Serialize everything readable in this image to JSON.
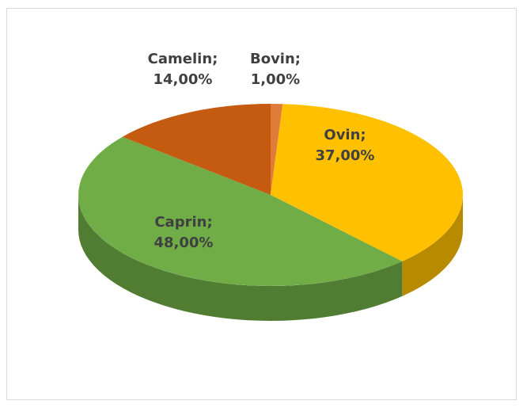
{
  "chart_data": {
    "type": "pie",
    "title": "",
    "slices": [
      {
        "name": "Bovin",
        "value": 1.0,
        "label_value": "1,00%",
        "color": "#e07b39"
      },
      {
        "name": "Ovin",
        "value": 37.0,
        "label_value": "37,00%",
        "color": "#ffc000"
      },
      {
        "name": "Caprin",
        "value": 48.0,
        "label_value": "48,00%",
        "color": "#70ad47"
      },
      {
        "name": "Camelin",
        "value": 14.0,
        "label_value": "14,00%",
        "color": "#c55a11"
      }
    ],
    "legend": "none",
    "style": "3d"
  }
}
